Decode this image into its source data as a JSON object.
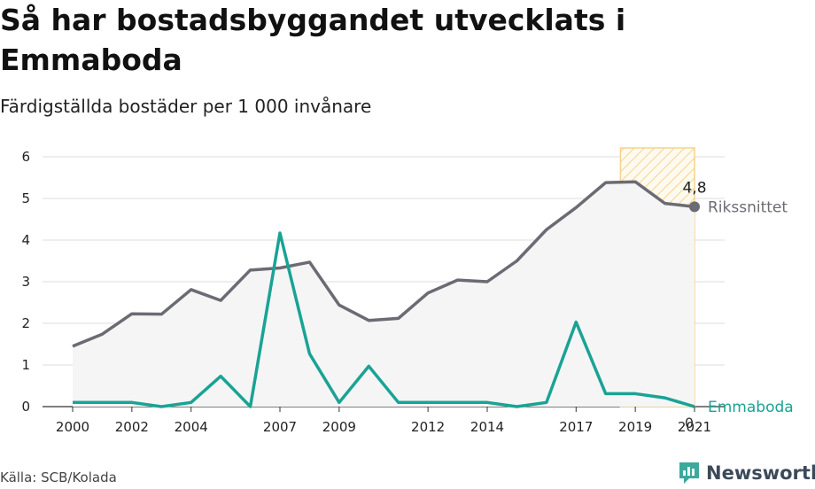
{
  "header": {
    "title": "Så har bostadsbyggandet utvecklats i Emmaboda",
    "subtitle": "Färdigställda bostäder per 1 000 invånare"
  },
  "footer": {
    "source": "Källa: SCB/Kolada",
    "brand": "Newsworthy",
    "brand_icon": "newsworthy-logo-icon",
    "brand_color": "#3ba99c"
  },
  "chart_data": {
    "type": "line",
    "x": [
      2000,
      2001,
      2002,
      2003,
      2004,
      2005,
      2006,
      2007,
      2008,
      2009,
      2010,
      2011,
      2012,
      2013,
      2014,
      2015,
      2016,
      2017,
      2018,
      2019,
      2020,
      2021
    ],
    "x_ticks": [
      2000,
      2002,
      2004,
      2007,
      2009,
      2012,
      2014,
      2017,
      2019,
      2021
    ],
    "y_ticks": [
      0,
      1,
      2,
      3,
      4,
      5,
      6
    ],
    "ylim": [
      0,
      6
    ],
    "grid": true,
    "highlight_range": [
      2018.5,
      2021
    ],
    "series": [
      {
        "name": "Rikssnittet",
        "color": "#6b6b73",
        "area_fill": "#f5f5f6",
        "values": [
          1.45,
          1.74,
          2.23,
          2.22,
          2.81,
          2.55,
          3.28,
          3.33,
          3.47,
          2.44,
          2.07,
          2.12,
          2.73,
          3.04,
          3.0,
          3.5,
          4.25,
          4.78,
          5.38,
          5.4,
          4.88,
          4.8
        ],
        "end_label": "4,8"
      },
      {
        "name": "Emmaboda",
        "color": "#1aa394",
        "values": [
          0.1,
          0.1,
          0.1,
          0.0,
          0.1,
          0.73,
          0.0,
          4.17,
          1.27,
          0.1,
          0.97,
          0.1,
          0.1,
          0.1,
          0.1,
          0.0,
          0.1,
          2.03,
          0.31,
          0.31,
          0.21,
          0.0
        ],
        "end_label": "0"
      }
    ]
  }
}
